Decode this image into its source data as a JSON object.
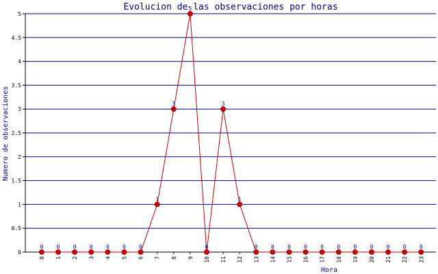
{
  "chart_data": {
    "type": "line",
    "title": "Evolucion de las observaciones por horas",
    "xlabel": "Hora",
    "ylabel": "Numero de observaciones",
    "categories": [
      "0",
      "1",
      "2",
      "3",
      "4",
      "5",
      "6",
      "7",
      "8",
      "9",
      "10",
      "11",
      "12",
      "13",
      "14",
      "15",
      "16",
      "17",
      "18",
      "19",
      "20",
      "21",
      "22",
      "23"
    ],
    "series": [
      {
        "values": [
          0,
          0,
          0,
          0,
          0,
          0,
          0,
          1,
          3,
          5,
          0,
          3,
          1,
          0,
          0,
          0,
          0,
          0,
          0,
          0,
          0,
          0,
          0,
          0
        ]
      }
    ],
    "data_labels": [
      "0",
      "0",
      "0",
      "0",
      "0",
      "0",
      "0",
      "1",
      "3",
      "5",
      "0",
      "3",
      "1",
      "0",
      "0",
      "0",
      "0",
      "0",
      "0",
      "0",
      "0",
      "0",
      "0",
      "0"
    ],
    "ylim": [
      0,
      5
    ],
    "yticks": [
      "0",
      "0.5",
      "1",
      "1.5",
      "2",
      "2.5",
      "3",
      "3.5",
      "4",
      "4.5",
      "5"
    ],
    "grid": true,
    "colors": {
      "line": "#c00000",
      "marker": "#cc0000",
      "grid": "#000080",
      "text": "#000080"
    }
  }
}
